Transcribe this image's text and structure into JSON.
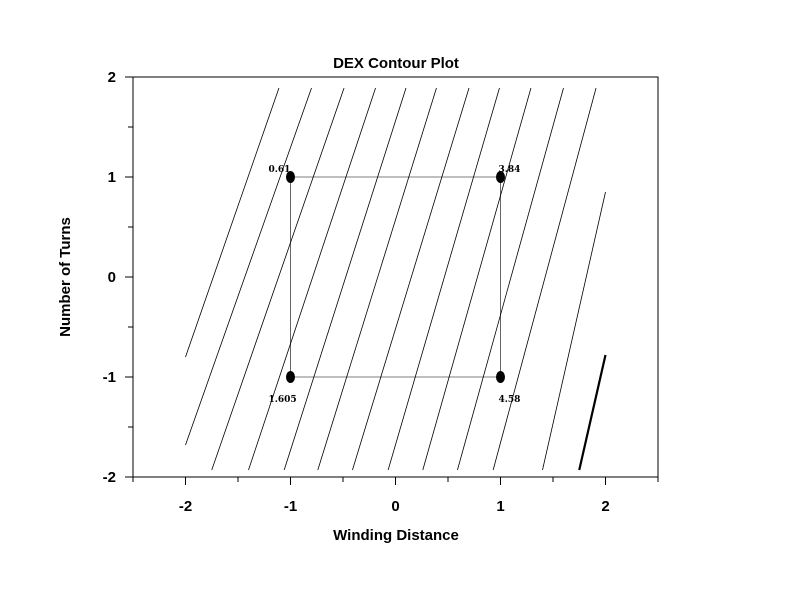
{
  "chart_data": {
    "type": "contour",
    "title": "DEX Contour Plot",
    "xlabel": "Winding Distance",
    "ylabel": "Number of Turns",
    "xlim": [
      -2.5,
      2.5
    ],
    "ylim": [
      -2,
      2
    ],
    "x_ticks": [
      -2,
      -1,
      0,
      1,
      2
    ],
    "y_ticks": [
      -2,
      -1,
      0,
      1,
      2
    ],
    "x_tick_labels": [
      "-2",
      "-1",
      "0",
      "1",
      "2"
    ],
    "y_tick_labels": [
      "-2",
      "-1",
      "0",
      "1",
      "2"
    ],
    "design_points": [
      {
        "x": -1,
        "y": 1,
        "label": "0.61"
      },
      {
        "x": 1,
        "y": 1,
        "label": "3.84"
      },
      {
        "x": -1,
        "y": -1,
        "label": "1.605"
      },
      {
        "x": 1,
        "y": -1,
        "label": "4.58"
      }
    ],
    "contour_lines": [
      {
        "points": [
          [
            -2,
            -0.8
          ],
          [
            -1.11,
            1.89
          ]
        ]
      },
      {
        "points": [
          [
            -2,
            -1.68
          ],
          [
            -0.8,
            1.89
          ]
        ]
      },
      {
        "points": [
          [
            -1.75,
            -1.93
          ],
          [
            -0.49,
            1.89
          ]
        ]
      },
      {
        "points": [
          [
            -1.4,
            -1.93
          ],
          [
            -0.19,
            1.89
          ]
        ]
      },
      {
        "points": [
          [
            -1.06,
            -1.93
          ],
          [
            0.1,
            1.89
          ]
        ]
      },
      {
        "points": [
          [
            -0.74,
            -1.93
          ],
          [
            0.39,
            1.89
          ]
        ]
      },
      {
        "points": [
          [
            -0.41,
            -1.93
          ],
          [
            0.7,
            1.89
          ]
        ]
      },
      {
        "points": [
          [
            -0.07,
            -1.93
          ],
          [
            0.99,
            1.89
          ]
        ]
      },
      {
        "points": [
          [
            0.26,
            -1.93
          ],
          [
            1.29,
            1.89
          ]
        ]
      },
      {
        "points": [
          [
            0.59,
            -1.93
          ],
          [
            1.6,
            1.89
          ]
        ]
      },
      {
        "points": [
          [
            0.93,
            -1.93
          ],
          [
            1.91,
            1.89
          ]
        ]
      },
      {
        "points": [
          [
            1.4,
            -1.93
          ],
          [
            2.0,
            0.85
          ]
        ]
      },
      {
        "points": [
          [
            1.75,
            -1.93
          ],
          [
            2.0,
            -0.78
          ]
        ],
        "bold": true
      }
    ]
  }
}
